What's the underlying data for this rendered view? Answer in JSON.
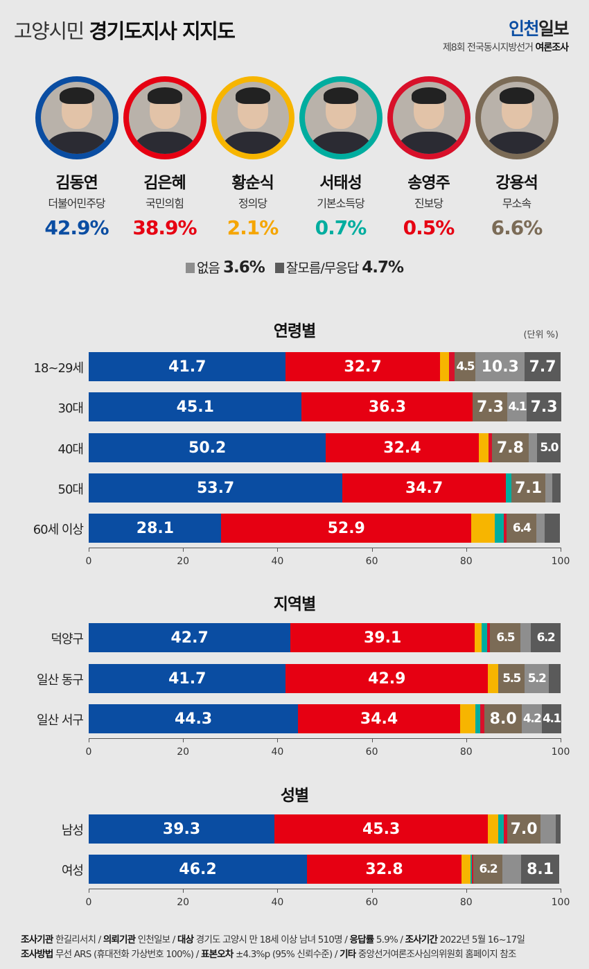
{
  "header": {
    "title_light": "고양시민",
    "title_bold": "경기도지사 지지도",
    "brand_a": "인천",
    "brand_b": "일보",
    "subtitle_light": "제8회 전국동시지방선거",
    "subtitle_bold": "여론조사"
  },
  "colors": {
    "김동연": "#0a4da2",
    "김은혜": "#e60012",
    "황순식": "#f7b500",
    "서태성": "#00ad9f",
    "송영주": "#d8102a",
    "강용석": "#7b6b56",
    "없음": "#8e8e8e",
    "잘모름": "#5a5a5a"
  },
  "candidates": [
    {
      "name": "김동연",
      "party": "더불어민주당",
      "pct": "42.9%",
      "color": "#0a4da2",
      "ring": "#0a4da2"
    },
    {
      "name": "김은혜",
      "party": "국민의힘",
      "pct": "38.9%",
      "color": "#e60012",
      "ring": "#e60012"
    },
    {
      "name": "황순식",
      "party": "정의당",
      "pct": "2.1%",
      "color": "#f5a500",
      "ring": "#f7b500"
    },
    {
      "name": "서태성",
      "party": "기본소득당",
      "pct": "0.7%",
      "color": "#00ad9f",
      "ring": "#00ad9f"
    },
    {
      "name": "송영주",
      "party": "진보당",
      "pct": "0.5%",
      "color": "#e60012",
      "ring": "#d8102a"
    },
    {
      "name": "강용석",
      "party": "무소속",
      "pct": "6.6%",
      "color": "#7b6b56",
      "ring": "#7b6b56"
    }
  ],
  "others": {
    "none_label": "없음",
    "none_pct": "3.6%",
    "dk_label": "잘모름/무응답",
    "dk_pct": "4.7%"
  },
  "unit": "(단위 %)",
  "chart_data": [
    {
      "type": "bar",
      "stacked": true,
      "orientation": "horizontal",
      "title": "연령별",
      "xlim": [
        0,
        100
      ],
      "xticks": [
        "0",
        "20",
        "40",
        "60",
        "80",
        "100"
      ],
      "segment_order": [
        "김동연",
        "김은혜",
        "황순식",
        "서태성",
        "송영주",
        "강용석",
        "없음",
        "잘모름"
      ],
      "rows": [
        {
          "label": "18~29세",
          "values": [
            41.7,
            32.7,
            1.9,
            0,
            1.2,
            4.5,
            10.3,
            7.7
          ],
          "shown": [
            0,
            1,
            5,
            6,
            7
          ]
        },
        {
          "label": "30대",
          "values": [
            45.1,
            36.3,
            0,
            0,
            0,
            7.3,
            4.1,
            7.3
          ],
          "shown": [
            0,
            1,
            5,
            6,
            7
          ]
        },
        {
          "label": "40대",
          "values": [
            50.2,
            32.4,
            2.1,
            0,
            0.7,
            7.8,
            1.8,
            5.0
          ],
          "shown": [
            0,
            1,
            5,
            7
          ]
        },
        {
          "label": "50대",
          "values": [
            53.7,
            34.7,
            0,
            1.2,
            0,
            7.1,
            1.6,
            1.6
          ],
          "shown": [
            0,
            1,
            5
          ]
        },
        {
          "label": "60세 이상",
          "values": [
            28.1,
            52.9,
            5.1,
            1.9,
            0.5,
            6.4,
            1.7,
            3.2
          ],
          "shown": [
            0,
            1,
            5
          ]
        }
      ]
    },
    {
      "type": "bar",
      "stacked": true,
      "orientation": "horizontal",
      "title": "지역별",
      "xlim": [
        0,
        100
      ],
      "xticks": [
        "0",
        "20",
        "40",
        "60",
        "80",
        "100"
      ],
      "segment_order": [
        "김동연",
        "김은혜",
        "황순식",
        "서태성",
        "송영주",
        "강용석",
        "없음",
        "잘모름"
      ],
      "rows": [
        {
          "label": "덕양구",
          "values": [
            42.7,
            39.1,
            1.5,
            1.1,
            0.6,
            6.5,
            2.2,
            6.2
          ],
          "shown": [
            0,
            1,
            5,
            7
          ]
        },
        {
          "label": "일산 동구",
          "values": [
            41.7,
            42.9,
            2.2,
            0,
            0,
            5.5,
            5.2,
            2.5
          ],
          "shown": [
            0,
            1,
            5,
            6
          ]
        },
        {
          "label": "일산 서구",
          "values": [
            44.3,
            34.4,
            3.3,
            0.9,
            0.9,
            8.0,
            4.2,
            4.1
          ],
          "shown": [
            0,
            1,
            5,
            6,
            7
          ]
        }
      ]
    },
    {
      "type": "bar",
      "stacked": true,
      "orientation": "horizontal",
      "title": "성별",
      "xlim": [
        0,
        100
      ],
      "xticks": [
        "0",
        "20",
        "40",
        "60",
        "80",
        "100"
      ],
      "segment_order": [
        "김동연",
        "김은혜",
        "황순식",
        "서태성",
        "송영주",
        "강용석",
        "없음",
        "잘모름"
      ],
      "rows": [
        {
          "label": "남성",
          "values": [
            39.3,
            45.3,
            2.2,
            1.1,
            0.8,
            7.0,
            3.2,
            1.0
          ],
          "shown": [
            0,
            1,
            5
          ]
        },
        {
          "label": "여성",
          "values": [
            46.2,
            32.8,
            1.9,
            0.3,
            0.3,
            6.2,
            3.9,
            8.1
          ],
          "shown": [
            0,
            1,
            5,
            7
          ]
        }
      ]
    }
  ],
  "footer": [
    [
      {
        "k": "조사기관",
        "v": "한길리서치"
      },
      {
        "k": "의뢰기관",
        "v": "인천일보"
      },
      {
        "k": "대상",
        "v": "경기도 고양시 만 18세 이상 남녀 510명"
      },
      {
        "k": "응답률",
        "v": "5.9%"
      },
      {
        "k": "조사기간",
        "v": "2022년 5월 16~17일"
      }
    ],
    [
      {
        "k": "조사방법",
        "v": "무선 ARS (휴대전화 가상번호 100%)"
      },
      {
        "k": "표본오차",
        "v": "±4.3%p (95% 신뢰수준)"
      },
      {
        "k": "기타",
        "v": "중앙선거여론조사심의위원회 홈페이지 참조"
      }
    ]
  ]
}
